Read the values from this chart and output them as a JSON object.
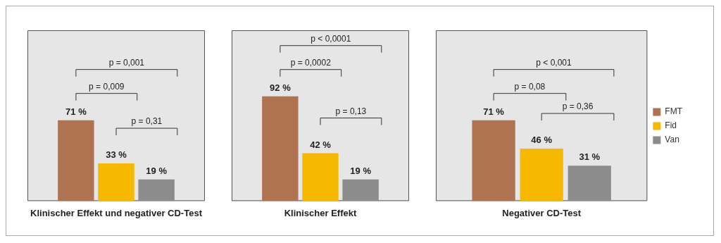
{
  "chart_data": [
    {
      "type": "bar",
      "xlabel": "Klinischer Effekt und negativer CD-Test",
      "categories": [
        null
      ],
      "ylim": [
        0,
        150
      ],
      "tick_labels": false,
      "grid": false,
      "legend": false,
      "series": [
        {
          "color": "#b07352",
          "values": [
            71
          ],
          "value_labels": [
            "71 %"
          ]
        },
        {
          "color": "#f7b900",
          "values": [
            33
          ],
          "value_labels": [
            "33 %"
          ]
        },
        {
          "color": "#8c8c8c",
          "values": [
            19
          ],
          "value_labels": [
            "19 %"
          ]
        }
      ],
      "annotations": [
        "p = 0,009",
        "p = 0,001",
        "p = 0,31"
      ]
    },
    {
      "type": "bar",
      "xlabel": "Klinischer Effekt",
      "categories": [
        null
      ],
      "ylim": [
        0,
        150
      ],
      "tick_labels": false,
      "grid": false,
      "legend": false,
      "series": [
        {
          "color": "#b07352",
          "values": [
            92
          ],
          "value_labels": [
            "92 %"
          ]
        },
        {
          "color": "#f7b900",
          "values": [
            42
          ],
          "value_labels": [
            "42 %"
          ]
        },
        {
          "color": "#8c8c8c",
          "values": [
            19
          ],
          "value_labels": [
            "19 %"
          ]
        }
      ],
      "annotations": [
        "p = 0,0002",
        "p < 0,0001",
        "p = 0,13"
      ]
    },
    {
      "type": "bar",
      "xlabel": "Negativer CD-Test",
      "categories": [
        null
      ],
      "ylim": [
        0,
        150
      ],
      "tick_labels": false,
      "grid": false,
      "legend": "right",
      "series": [
        {
          "name": "FMT",
          "color": "#b07352",
          "values": [
            71
          ],
          "value_labels": [
            "71 %"
          ]
        },
        {
          "name": "Fid",
          "color": "#f7b900",
          "values": [
            46
          ],
          "value_labels": [
            "46 %"
          ]
        },
        {
          "name": "Van",
          "color": "#8c8c8c",
          "values": [
            31
          ],
          "value_labels": [
            "31 %"
          ]
        }
      ],
      "annotations": [
        "p = 0,08",
        "p < 0,001",
        "p = 0,36"
      ]
    }
  ]
}
